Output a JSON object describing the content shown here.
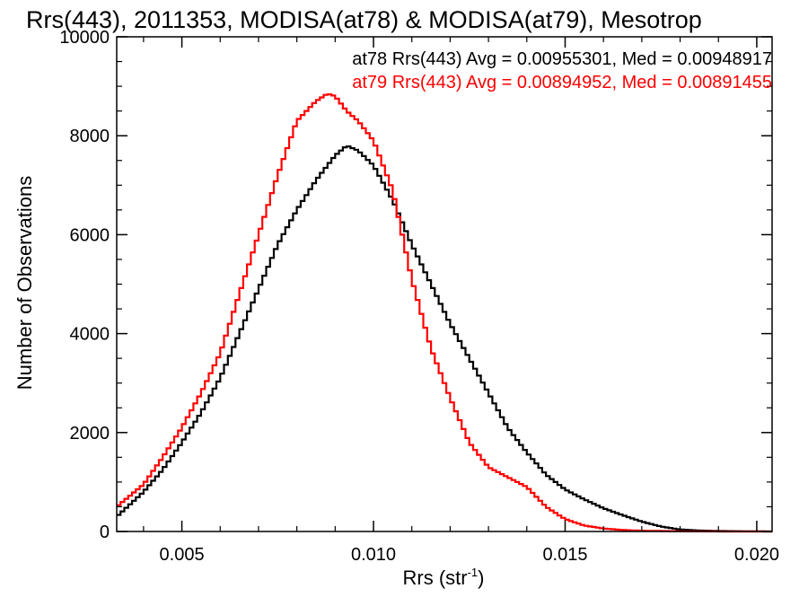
{
  "chart_data": {
    "type": "line",
    "title": "Rrs(443), 2011353, MODISA(at78) & MODISA(at79), Mesotrop",
    "xlabel": "Rrs (str",
    "xlabel_sup": "-1",
    "xlabel_close": ")",
    "ylabel": "Number of Observations",
    "xlim": [
      0.0033,
      0.0204
    ],
    "ylim": [
      0,
      10000
    ],
    "xticks": [
      0.005,
      0.01,
      0.015,
      0.02
    ],
    "xtick_labels": [
      "0.005",
      "0.010",
      "0.015",
      "0.020"
    ],
    "yticks": [
      0,
      2000,
      4000,
      6000,
      8000,
      10000
    ],
    "ytick_labels": [
      "0",
      "2000",
      "4000",
      "6000",
      "8000",
      "10000"
    ],
    "grid": false,
    "step": true,
    "legend_position": "top-right",
    "annotations": [
      {
        "text": "at78 Rrs(443) Avg = 0.00955301, Med = 0.00948917",
        "color": "#000000"
      },
      {
        "text": "at79 Rrs(443) Avg = 0.00894952, Med = 0.00891455",
        "color": "#ff0000"
      }
    ],
    "series": [
      {
        "color": "#000000",
        "x": [
          0.0033,
          0.004,
          0.0045,
          0.005,
          0.0055,
          0.006,
          0.0065,
          0.007,
          0.0075,
          0.008,
          0.0085,
          0.009,
          0.0093,
          0.0096,
          0.01,
          0.0105,
          0.011,
          0.0115,
          0.012,
          0.0125,
          0.013,
          0.0135,
          0.014,
          0.0145,
          0.015,
          0.0155,
          0.016,
          0.0165,
          0.017,
          0.0175,
          0.018,
          0.0185,
          0.019,
          0.0195,
          0.02,
          0.0204
        ],
        "y": [
          300,
          800,
          1250,
          1800,
          2400,
          3100,
          4000,
          4900,
          5800,
          6500,
          7100,
          7600,
          7800,
          7700,
          7400,
          6700,
          5800,
          5000,
          4200,
          3500,
          2800,
          2100,
          1600,
          1150,
          850,
          650,
          470,
          330,
          200,
          100,
          40,
          20,
          10,
          5,
          2,
          0
        ]
      },
      {
        "color": "#ff0000",
        "x": [
          0.0033,
          0.004,
          0.0045,
          0.005,
          0.0055,
          0.006,
          0.0065,
          0.007,
          0.0075,
          0.008,
          0.0085,
          0.0088,
          0.009,
          0.0093,
          0.0096,
          0.01,
          0.0105,
          0.011,
          0.0115,
          0.012,
          0.0125,
          0.013,
          0.0135,
          0.014,
          0.0145,
          0.015,
          0.0155,
          0.016,
          0.0165,
          0.017,
          0.0175,
          0.018,
          0.0185,
          0.019,
          0.0195,
          0.0204
        ],
        "y": [
          500,
          950,
          1500,
          2100,
          2800,
          3600,
          4800,
          6000,
          7200,
          8300,
          8700,
          8850,
          8800,
          8500,
          8300,
          7900,
          6900,
          5100,
          3700,
          2700,
          1800,
          1300,
          1100,
          900,
          500,
          250,
          120,
          60,
          30,
          15,
          10,
          5,
          3,
          1,
          0,
          0
        ]
      }
    ]
  }
}
